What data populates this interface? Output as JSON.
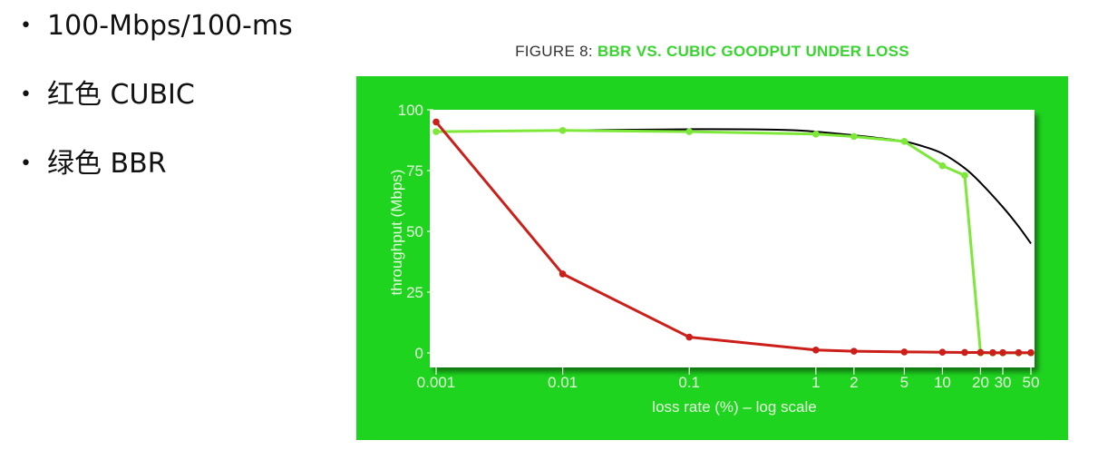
{
  "bullets": [
    {
      "marker": "•",
      "text": "100-Mbps/100-ms"
    },
    {
      "marker": "•",
      "text": "红色 CUBIC"
    },
    {
      "marker": "•",
      "text": "绿色 BBR"
    }
  ],
  "figure": {
    "title_prefix": "FIGURE 8:",
    "title_main": "BBR VS. CUBIC GOODPUT UNDER LOSS"
  },
  "chart_data": {
    "type": "line",
    "x_scale": "log",
    "xlabel": "loss rate (%) – log scale",
    "ylabel": "throughput (Mbps)",
    "xlim": [
      0.001,
      50
    ],
    "ylim": [
      0,
      100
    ],
    "x_ticks": [
      {
        "label": "0.001",
        "value": 0.001
      },
      {
        "label": "0.01",
        "value": 0.01
      },
      {
        "label": "0.1",
        "value": 0.1
      },
      {
        "label": "1",
        "value": 1
      },
      {
        "label": "2",
        "value": 2
      },
      {
        "label": "5",
        "value": 5
      },
      {
        "label": "10",
        "value": 10
      },
      {
        "label": "20",
        "value": 20
      },
      {
        "label": "30",
        "value": 30
      },
      {
        "label": "50",
        "value": 50
      }
    ],
    "y_ticks": [
      {
        "label": "0",
        "value": 0
      },
      {
        "label": "25",
        "value": 25
      },
      {
        "label": "50",
        "value": 50
      },
      {
        "label": "75",
        "value": 75
      },
      {
        "label": "100",
        "value": 100
      }
    ],
    "series": [
      {
        "color": "#000000",
        "markers": false,
        "smooth": true,
        "x": [
          0.001,
          0.01,
          0.1,
          0.5,
          1,
          2,
          3,
          5,
          7,
          10,
          15,
          20,
          30,
          40,
          50
        ],
        "y": [
          91,
          91.5,
          92,
          91.8,
          91,
          89.5,
          88.5,
          87,
          85,
          82,
          76,
          70,
          60,
          52,
          45
        ]
      },
      {
        "color": "#7ee83a",
        "markers": true,
        "x": [
          0.001,
          0.01,
          0.1,
          1,
          2,
          5,
          10,
          15,
          20,
          25,
          30,
          40,
          50
        ],
        "y": [
          91,
          91.5,
          91,
          90,
          89,
          87,
          77,
          73,
          0,
          0,
          0,
          0,
          0
        ]
      },
      {
        "color": "#cc1f1a",
        "markers": true,
        "x": [
          0.001,
          0.01,
          0.1,
          1,
          2,
          5,
          10,
          15,
          20,
          25,
          30,
          40,
          50
        ],
        "y": [
          95,
          32.5,
          6.5,
          1.2,
          0.7,
          0.4,
          0.3,
          0.2,
          0.2,
          0.1,
          0.1,
          0.1,
          0.1
        ]
      }
    ]
  }
}
